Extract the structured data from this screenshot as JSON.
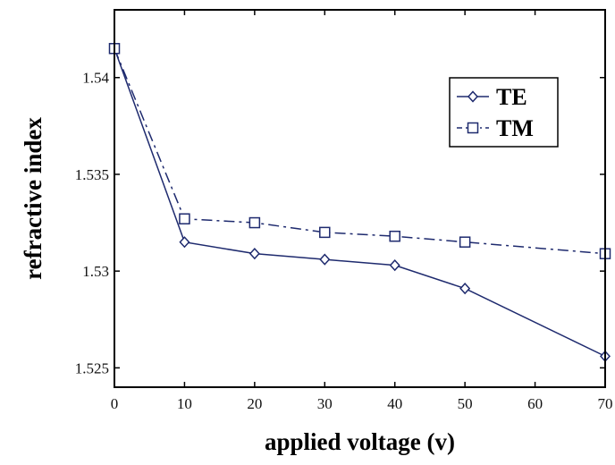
{
  "chart_data": {
    "type": "line",
    "xlabel": "applied voltage (v)",
    "ylabel": "refractive index",
    "xlim": [
      0,
      70
    ],
    "ylim": [
      1.524,
      1.5435
    ],
    "xticks": [
      "0",
      "10",
      "20",
      "30",
      "40",
      "50",
      "60",
      "70"
    ],
    "yticks": [
      "1.525",
      "1.53",
      "1.535",
      "1.54"
    ],
    "grid": false,
    "legend_position": "top-right",
    "series": [
      {
        "name": "TE",
        "color": "#1e2a6e",
        "marker": "diamond",
        "line_style": "solid",
        "x": [
          0,
          10,
          20,
          30,
          40,
          50,
          70
        ],
        "y": [
          1.5415,
          1.5315,
          1.5309,
          1.5306,
          1.5303,
          1.5291,
          1.5256
        ]
      },
      {
        "name": "TM",
        "color": "#1e2a6e",
        "marker": "square",
        "line_style": "dash-dot",
        "x": [
          0,
          10,
          20,
          30,
          40,
          50,
          70
        ],
        "y": [
          1.5415,
          1.5327,
          1.5325,
          1.532,
          1.5318,
          1.5315,
          1.5309
        ]
      }
    ]
  }
}
